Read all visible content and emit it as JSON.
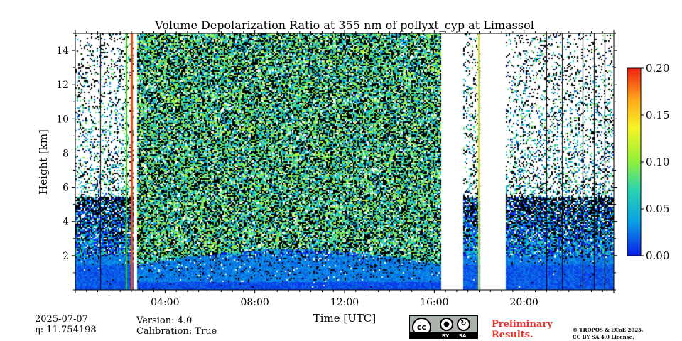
{
  "chart_data": {
    "type": "heatmap",
    "title": "Volume Depolarization Ratio at 355 nm of pollyxt_cyp at Limassol",
    "xlabel": "Time [UTC]",
    "ylabel": "Height [km]",
    "x_range_hours": [
      0,
      24
    ],
    "y_range_km": [
      0,
      15
    ],
    "x_ticks": [
      {
        "value": 4,
        "label": "04:00"
      },
      {
        "value": 8,
        "label": "08:00"
      },
      {
        "value": 12,
        "label": "12:00"
      },
      {
        "value": 16,
        "label": "16:00"
      },
      {
        "value": 20,
        "label": "20:00"
      }
    ],
    "y_ticks": [
      {
        "value": 2,
        "label": "2"
      },
      {
        "value": 4,
        "label": "4"
      },
      {
        "value": 6,
        "label": "6"
      },
      {
        "value": 8,
        "label": "8"
      },
      {
        "value": 10,
        "label": "10"
      },
      {
        "value": 12,
        "label": "12"
      },
      {
        "value": 14,
        "label": "14"
      }
    ],
    "colorbar": {
      "range": [
        0.0,
        0.2
      ],
      "ticks": [
        {
          "value": 0.0,
          "label": "0.00"
        },
        {
          "value": 0.05,
          "label": "0.05"
        },
        {
          "value": 0.1,
          "label": "0.10"
        },
        {
          "value": 0.15,
          "label": "0.15"
        },
        {
          "value": 0.2,
          "label": "0.20"
        }
      ],
      "colors": [
        "#0a1ee8",
        "#0aa0e6",
        "#2ad4b0",
        "#8ef03c",
        "#f6f424",
        "#ffaa1a",
        "#f02010"
      ]
    },
    "data_gaps_hours": [
      [
        2.55,
        2.75
      ],
      [
        16.3,
        17.3
      ],
      [
        18.0,
        19.2
      ]
    ],
    "segments_hours": [
      [
        0.0,
        2.55
      ],
      [
        2.75,
        16.3
      ],
      [
        17.3,
        18.0
      ],
      [
        19.2,
        24.0
      ]
    ],
    "depol_profile": [
      {
        "height_km": 0.5,
        "value": 0.02
      },
      {
        "height_km": 2.0,
        "value": 0.03
      },
      {
        "height_km": 4.0,
        "value": 0.06
      },
      {
        "height_km": 8.0,
        "value": 0.08
      },
      {
        "height_km": 14.0,
        "value": 0.08
      }
    ]
  },
  "footer": {
    "date": "2025-07-07",
    "eta": "η: 11.754198",
    "version": "Version: 4.0",
    "calibration": "Calibration: True",
    "preliminary_line1": "Preliminary",
    "preliminary_line2": "Results.",
    "copyright_line1": "© TROPOS & ECoE 2025.",
    "copyright_line2": "CC BY SA 4.0 License.",
    "license_badge": {
      "cc": "cc",
      "by": "BY",
      "sa": "SA"
    }
  }
}
